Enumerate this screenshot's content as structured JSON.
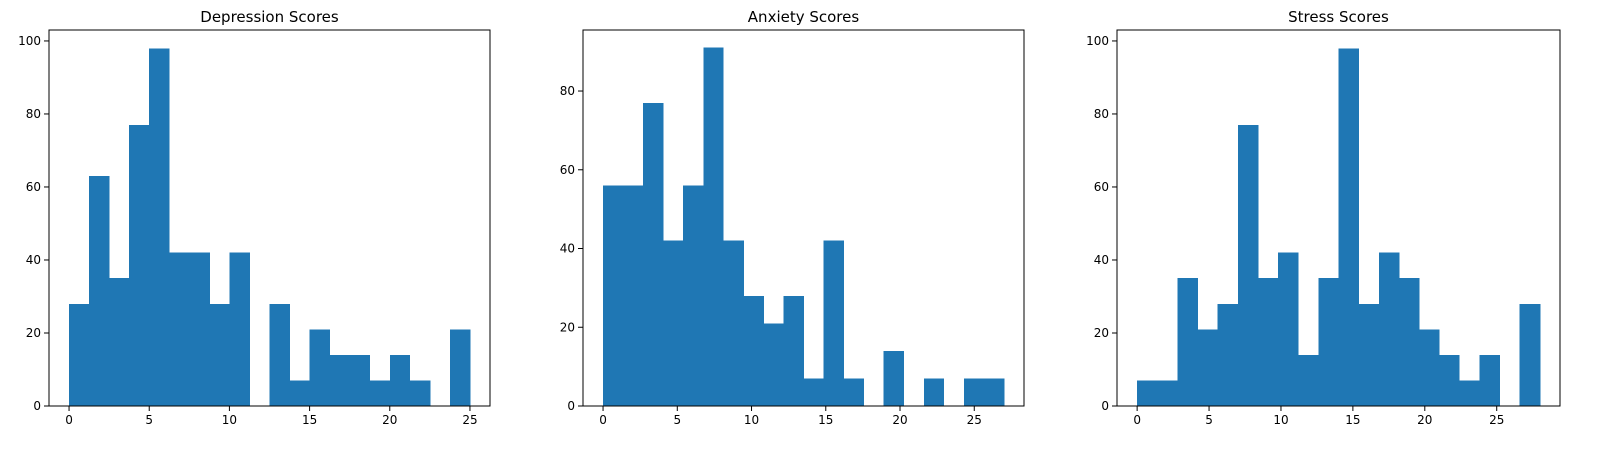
{
  "chart_data": [
    {
      "type": "histogram",
      "title": "Depression Scores",
      "xlabel": "",
      "ylabel": "",
      "xlim": [
        -1.25,
        26.25
      ],
      "ylim": [
        0,
        103
      ],
      "bin_start": 0,
      "bin_end": 25,
      "bins": 20,
      "counts": [
        28,
        63,
        35,
        77,
        98,
        42,
        42,
        28,
        42,
        0,
        28,
        7,
        21,
        14,
        14,
        7,
        14,
        7,
        0,
        21
      ],
      "xticks": [
        0,
        5,
        10,
        15,
        20,
        25
      ],
      "yticks": [
        0,
        20,
        40,
        60,
        80,
        100
      ],
      "color": "#1f77b4"
    },
    {
      "type": "histogram",
      "title": "Anxiety Scores",
      "xlabel": "",
      "ylabel": "",
      "xlim": [
        -1.35,
        28.35
      ],
      "ylim": [
        0,
        95.5
      ],
      "bin_start": 0,
      "bin_end": 27,
      "bins": 20,
      "counts": [
        56,
        56,
        77,
        42,
        56,
        91,
        42,
        28,
        21,
        28,
        7,
        42,
        7,
        0,
        14,
        0,
        7,
        0,
        7,
        7
      ],
      "xticks": [
        0,
        5,
        10,
        15,
        20,
        25
      ],
      "yticks": [
        0,
        20,
        40,
        60,
        80
      ],
      "color": "#1f77b4"
    },
    {
      "type": "histogram",
      "title": "Stress Scores",
      "xlabel": "",
      "ylabel": "",
      "xlim": [
        -1.4,
        29.4
      ],
      "ylim": [
        0,
        103
      ],
      "bin_start": 0,
      "bin_end": 28,
      "bins": 20,
      "counts": [
        7,
        7,
        35,
        21,
        28,
        77,
        35,
        42,
        14,
        35,
        98,
        28,
        42,
        35,
        21,
        14,
        7,
        14,
        0,
        28
      ],
      "xticks": [
        0,
        5,
        10,
        15,
        20,
        25
      ],
      "yticks": [
        0,
        20,
        40,
        60,
        80,
        100
      ],
      "color": "#1f77b4"
    }
  ]
}
